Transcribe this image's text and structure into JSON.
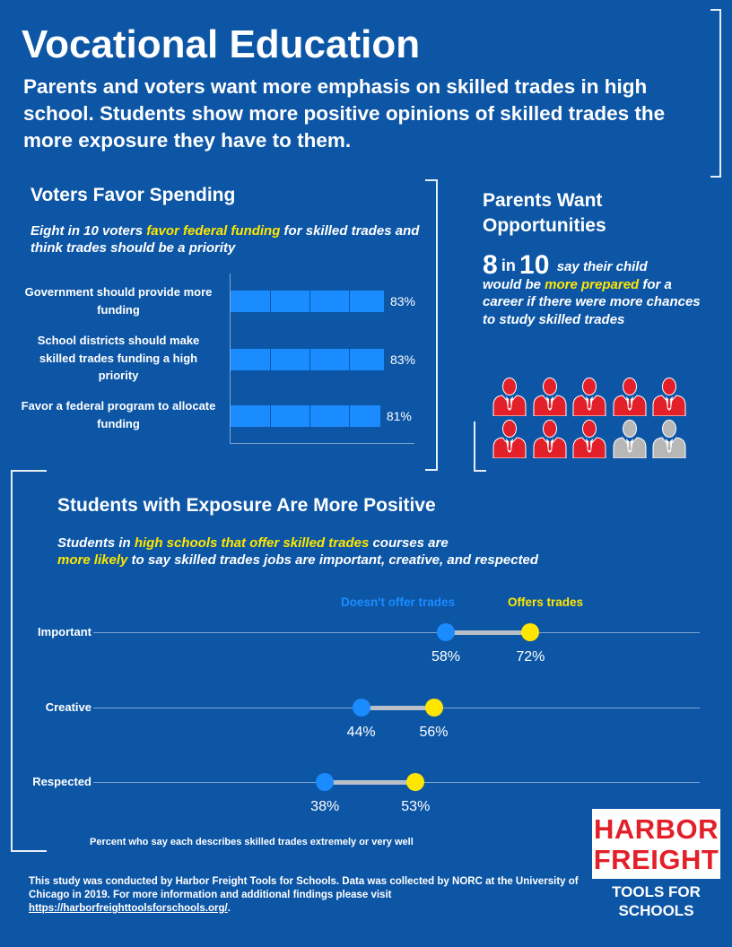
{
  "title": "Vocational Education",
  "subtitle": "Parents and voters want more emphasis on skilled trades in high school. Students show more positive opinions of skilled trades the more exposure they have to them.",
  "voters": {
    "title": "Voters Favor Spending",
    "desc_parts": [
      "Eight in 10 voters ",
      "favor federal funding",
      " for skilled trades and think trades should be a priority"
    ]
  },
  "parents": {
    "title": "Parents Want Opportunities",
    "big1": "8",
    "in": "in",
    "big2": "10",
    "say": "say their child",
    "text_before": "would be ",
    "highlight": "more prepared",
    "text_after": " for a career if there were more chances to study skilled trades",
    "icons_total": 10,
    "icons_highlighted": 8,
    "icon_name": "person-icon",
    "color_highlight": "#e3202a",
    "color_other": "#b7b7b7"
  },
  "students": {
    "title": "Students with Exposure Are More Positive",
    "desc_parts": [
      "Students in ",
      "high schools that offer skilled trades",
      " courses are ",
      "more likely",
      " to say skilled trades jobs are important, creative, and respected"
    ]
  },
  "footnote": "Percent who say each describes skilled trades extremely or very well",
  "source_text": "This study was conducted by Harbor Freight Tools for Schools. Data was collected by NORC at the University of Chicago in 2019. For more information and additional findings please visit ",
  "source_link": "https://harborfreighttoolsforschools.org/",
  "source_end": ".",
  "logo": {
    "line1": "HARBOR",
    "line2": "FREIGHT",
    "line3": "TOOLS FOR",
    "line4": "SCHOOLS"
  },
  "colors": {
    "background": "#0d56a6",
    "bar": "#1a8cff",
    "highlight": "#ffe600",
    "no_trades": "#1a8cff",
    "offers_trades": "#ffe600"
  },
  "chart_data": [
    {
      "type": "bar",
      "orientation": "horizontal",
      "categories": [
        "Government should provide more funding",
        "School districts should make skilled trades funding a high priority",
        "Favor a federal program to allocate funding"
      ],
      "values": [
        83,
        83,
        81
      ],
      "value_labels": [
        "83%",
        "83%",
        "81%"
      ],
      "xlim": [
        0,
        100
      ]
    },
    {
      "type": "scatter",
      "subtype": "dumbbell",
      "categories": [
        "Important",
        "Creative",
        "Respected"
      ],
      "series": [
        {
          "name": "Doesn't offer trades",
          "values": [
            58,
            44,
            38
          ],
          "labels": [
            "58%",
            "44%",
            "38%"
          ],
          "color": "#1a8cff"
        },
        {
          "name": "Offers trades",
          "values": [
            72,
            56,
            53
          ],
          "labels": [
            "72%",
            "56%",
            "53%"
          ],
          "color": "#ffe600"
        }
      ]
    }
  ]
}
